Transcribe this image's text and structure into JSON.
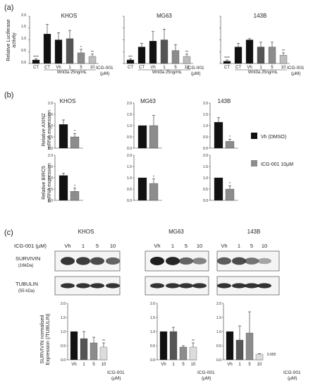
{
  "panel_labels": {
    "a": "(a)",
    "b": "(b)",
    "c": "(c)"
  },
  "titles": [
    "KHOS",
    "MG63",
    "143B"
  ],
  "units": {
    "icg_micro": "(μM)"
  },
  "colors": {
    "black": "#111111",
    "dark_gray": "#555555",
    "mid_gray": "#8c8c8c",
    "light_gray": "#bdbdbd",
    "paler_gray": "#dcdcdc"
  },
  "panel_a": {
    "ylabel_line1": "Relative Luciferase",
    "ylabel_line2": "activity",
    "yticks": [
      "0.0",
      "0.5",
      "1.0",
      "1.5",
      "2.0"
    ],
    "categories": [
      "CT",
      "CT",
      "Vh",
      "1",
      "5",
      "10"
    ],
    "icg_label": "ICG-001",
    "wnt_label": "Wnt3a 25ng/mL"
  },
  "panel_b": {
    "ylabel_axin2_line1": "Relative AXIN2",
    "ylabel_axin2_line2": "mRNA expression",
    "ylabel_birc5_line1": "Relative BIRC5",
    "ylabel_birc5_line2": "mRNA expression",
    "yticks": [
      "0.0",
      "0.5",
      "1.0",
      "1.5",
      "2.0"
    ],
    "legend_vh": "Vh (DMSO)",
    "legend_icg": "ICG-001 10μM"
  },
  "panel_c": {
    "icg_row_label": "ICG-001 (μM)",
    "lane_labels": [
      "Vh",
      "1",
      "5",
      "10"
    ],
    "survivin_label": "SURVIVIN",
    "survivin_kda": "(16kDa)",
    "tubulin_label": "TUBULIN",
    "tubulin_kda": "(55 kDa)",
    "ylabel_line1": "SURVIVIN normalised",
    "ylabel_line2": "Expression (/TUBULIN)",
    "yticks": [
      "0.0",
      "0.5",
      "1.0",
      "1.5",
      "2.0"
    ],
    "categories": [
      "Vh",
      "1",
      "5",
      "10"
    ],
    "icg_label": "ICG-001",
    "pvalue_note": "0.005"
  },
  "chart_data": [
    {
      "type": "bar",
      "panel": "a",
      "title": "KHOS",
      "categories": [
        "CT",
        "CT",
        "Vh",
        "1",
        "5",
        "10"
      ],
      "values": [
        0.15,
        1.25,
        1.0,
        1.05,
        0.45,
        0.3
      ],
      "errors": [
        0.05,
        0.4,
        0.3,
        0.35,
        0.15,
        0.1
      ],
      "sig": [
        "****",
        "",
        "",
        "",
        "*",
        "**"
      ],
      "ylim": [
        0,
        2
      ]
    },
    {
      "type": "bar",
      "panel": "a",
      "title": "MG63",
      "categories": [
        "CT",
        "CT",
        "Vh",
        "1",
        "5",
        "10"
      ],
      "values": [
        0.15,
        0.7,
        0.95,
        1.0,
        0.55,
        0.3
      ],
      "errors": [
        0.05,
        0.15,
        0.4,
        0.45,
        0.25,
        0.1
      ],
      "sig": [
        "***",
        "",
        "",
        "",
        "",
        "**"
      ],
      "ylim": [
        0,
        2
      ]
    },
    {
      "type": "bar",
      "panel": "a",
      "title": "143B",
      "categories": [
        "CT",
        "CT",
        "Vh",
        "1",
        "5",
        "10"
      ],
      "values": [
        0.1,
        0.7,
        1.0,
        0.7,
        0.7,
        0.35
      ],
      "errors": [
        0.05,
        0.15,
        0.05,
        0.2,
        0.2,
        0.1
      ],
      "sig": [
        "****",
        "",
        "",
        "",
        "",
        "**"
      ],
      "ylim": [
        0,
        2
      ]
    },
    {
      "type": "bar",
      "panel": "b-AXIN2",
      "title": "KHOS",
      "series": [
        {
          "name": "Vh (DMSO)",
          "values": [
            1.05
          ]
        },
        {
          "name": "ICG-001 10μM",
          "values": [
            0.5
          ]
        }
      ],
      "errors": [
        0.2,
        0.15
      ],
      "sig": [
        "",
        "*"
      ],
      "ylim": [
        0,
        2
      ]
    },
    {
      "type": "bar",
      "panel": "b-AXIN2",
      "title": "MG63",
      "series": [
        {
          "name": "Vh (DMSO)",
          "values": [
            1.0
          ]
        },
        {
          "name": "ICG-001 10μM",
          "values": [
            1.0
          ]
        }
      ],
      "errors": [
        0.0,
        0.45
      ],
      "sig": [
        "",
        ""
      ],
      "ylim": [
        0,
        2
      ]
    },
    {
      "type": "bar",
      "panel": "b-AXIN2",
      "title": "143B",
      "series": [
        {
          "name": "Vh (DMSO)",
          "values": [
            1.15
          ]
        },
        {
          "name": "ICG-001 10μM",
          "values": [
            0.3
          ]
        }
      ],
      "errors": [
        0.2,
        0.1
      ],
      "sig": [
        "",
        "*"
      ],
      "ylim": [
        0,
        2
      ]
    },
    {
      "type": "bar",
      "panel": "b-BIRC5",
      "title": "KHOS",
      "series": [
        {
          "name": "Vh (DMSO)",
          "values": [
            1.1
          ]
        },
        {
          "name": "ICG-001 10μM",
          "values": [
            0.4
          ]
        }
      ],
      "errors": [
        0.1,
        0.15
      ],
      "sig": [
        "",
        "*"
      ],
      "ylim": [
        0,
        2
      ]
    },
    {
      "type": "bar",
      "panel": "b-BIRC5",
      "title": "MG63",
      "series": [
        {
          "name": "Vh (DMSO)",
          "values": [
            1.0
          ]
        },
        {
          "name": "ICG-001 10μM",
          "values": [
            0.75
          ]
        }
      ],
      "errors": [
        0.0,
        0.2
      ],
      "sig": [
        "",
        "*"
      ],
      "ylim": [
        0,
        2
      ]
    },
    {
      "type": "bar",
      "panel": "b-BIRC5",
      "title": "143B",
      "series": [
        {
          "name": "Vh (DMSO)",
          "values": [
            1.0
          ]
        },
        {
          "name": "ICG-001 10μM",
          "values": [
            0.5
          ]
        }
      ],
      "errors": [
        0.0,
        0.15
      ],
      "sig": [
        "",
        "*"
      ],
      "ylim": [
        0,
        2
      ]
    },
    {
      "type": "bar",
      "panel": "c",
      "title": "KHOS",
      "categories": [
        "Vh",
        "1",
        "5",
        "10"
      ],
      "values": [
        1.0,
        0.75,
        0.6,
        0.45
      ],
      "errors": [
        0.0,
        0.25,
        0.2,
        0.15
      ],
      "sig": [
        "",
        "",
        "",
        "**"
      ],
      "ylim": [
        0,
        2
      ]
    },
    {
      "type": "bar",
      "panel": "c",
      "title": "MG63",
      "categories": [
        "Vh",
        "1",
        "5",
        "10"
      ],
      "values": [
        1.0,
        1.0,
        0.45,
        0.45
      ],
      "errors": [
        0.0,
        0.15,
        0.05,
        0.15
      ],
      "sig": [
        "",
        "",
        "",
        "**"
      ],
      "ylim": [
        0,
        2
      ]
    },
    {
      "type": "bar",
      "panel": "c",
      "title": "143B",
      "categories": [
        "Vh",
        "1",
        "5",
        "10"
      ],
      "values": [
        1.0,
        0.7,
        0.95,
        0.2
      ],
      "errors": [
        0.0,
        0.5,
        0.75,
        0.02
      ],
      "sig": [
        "",
        "",
        "",
        ""
      ],
      "ylim": [
        0,
        2
      ]
    }
  ]
}
